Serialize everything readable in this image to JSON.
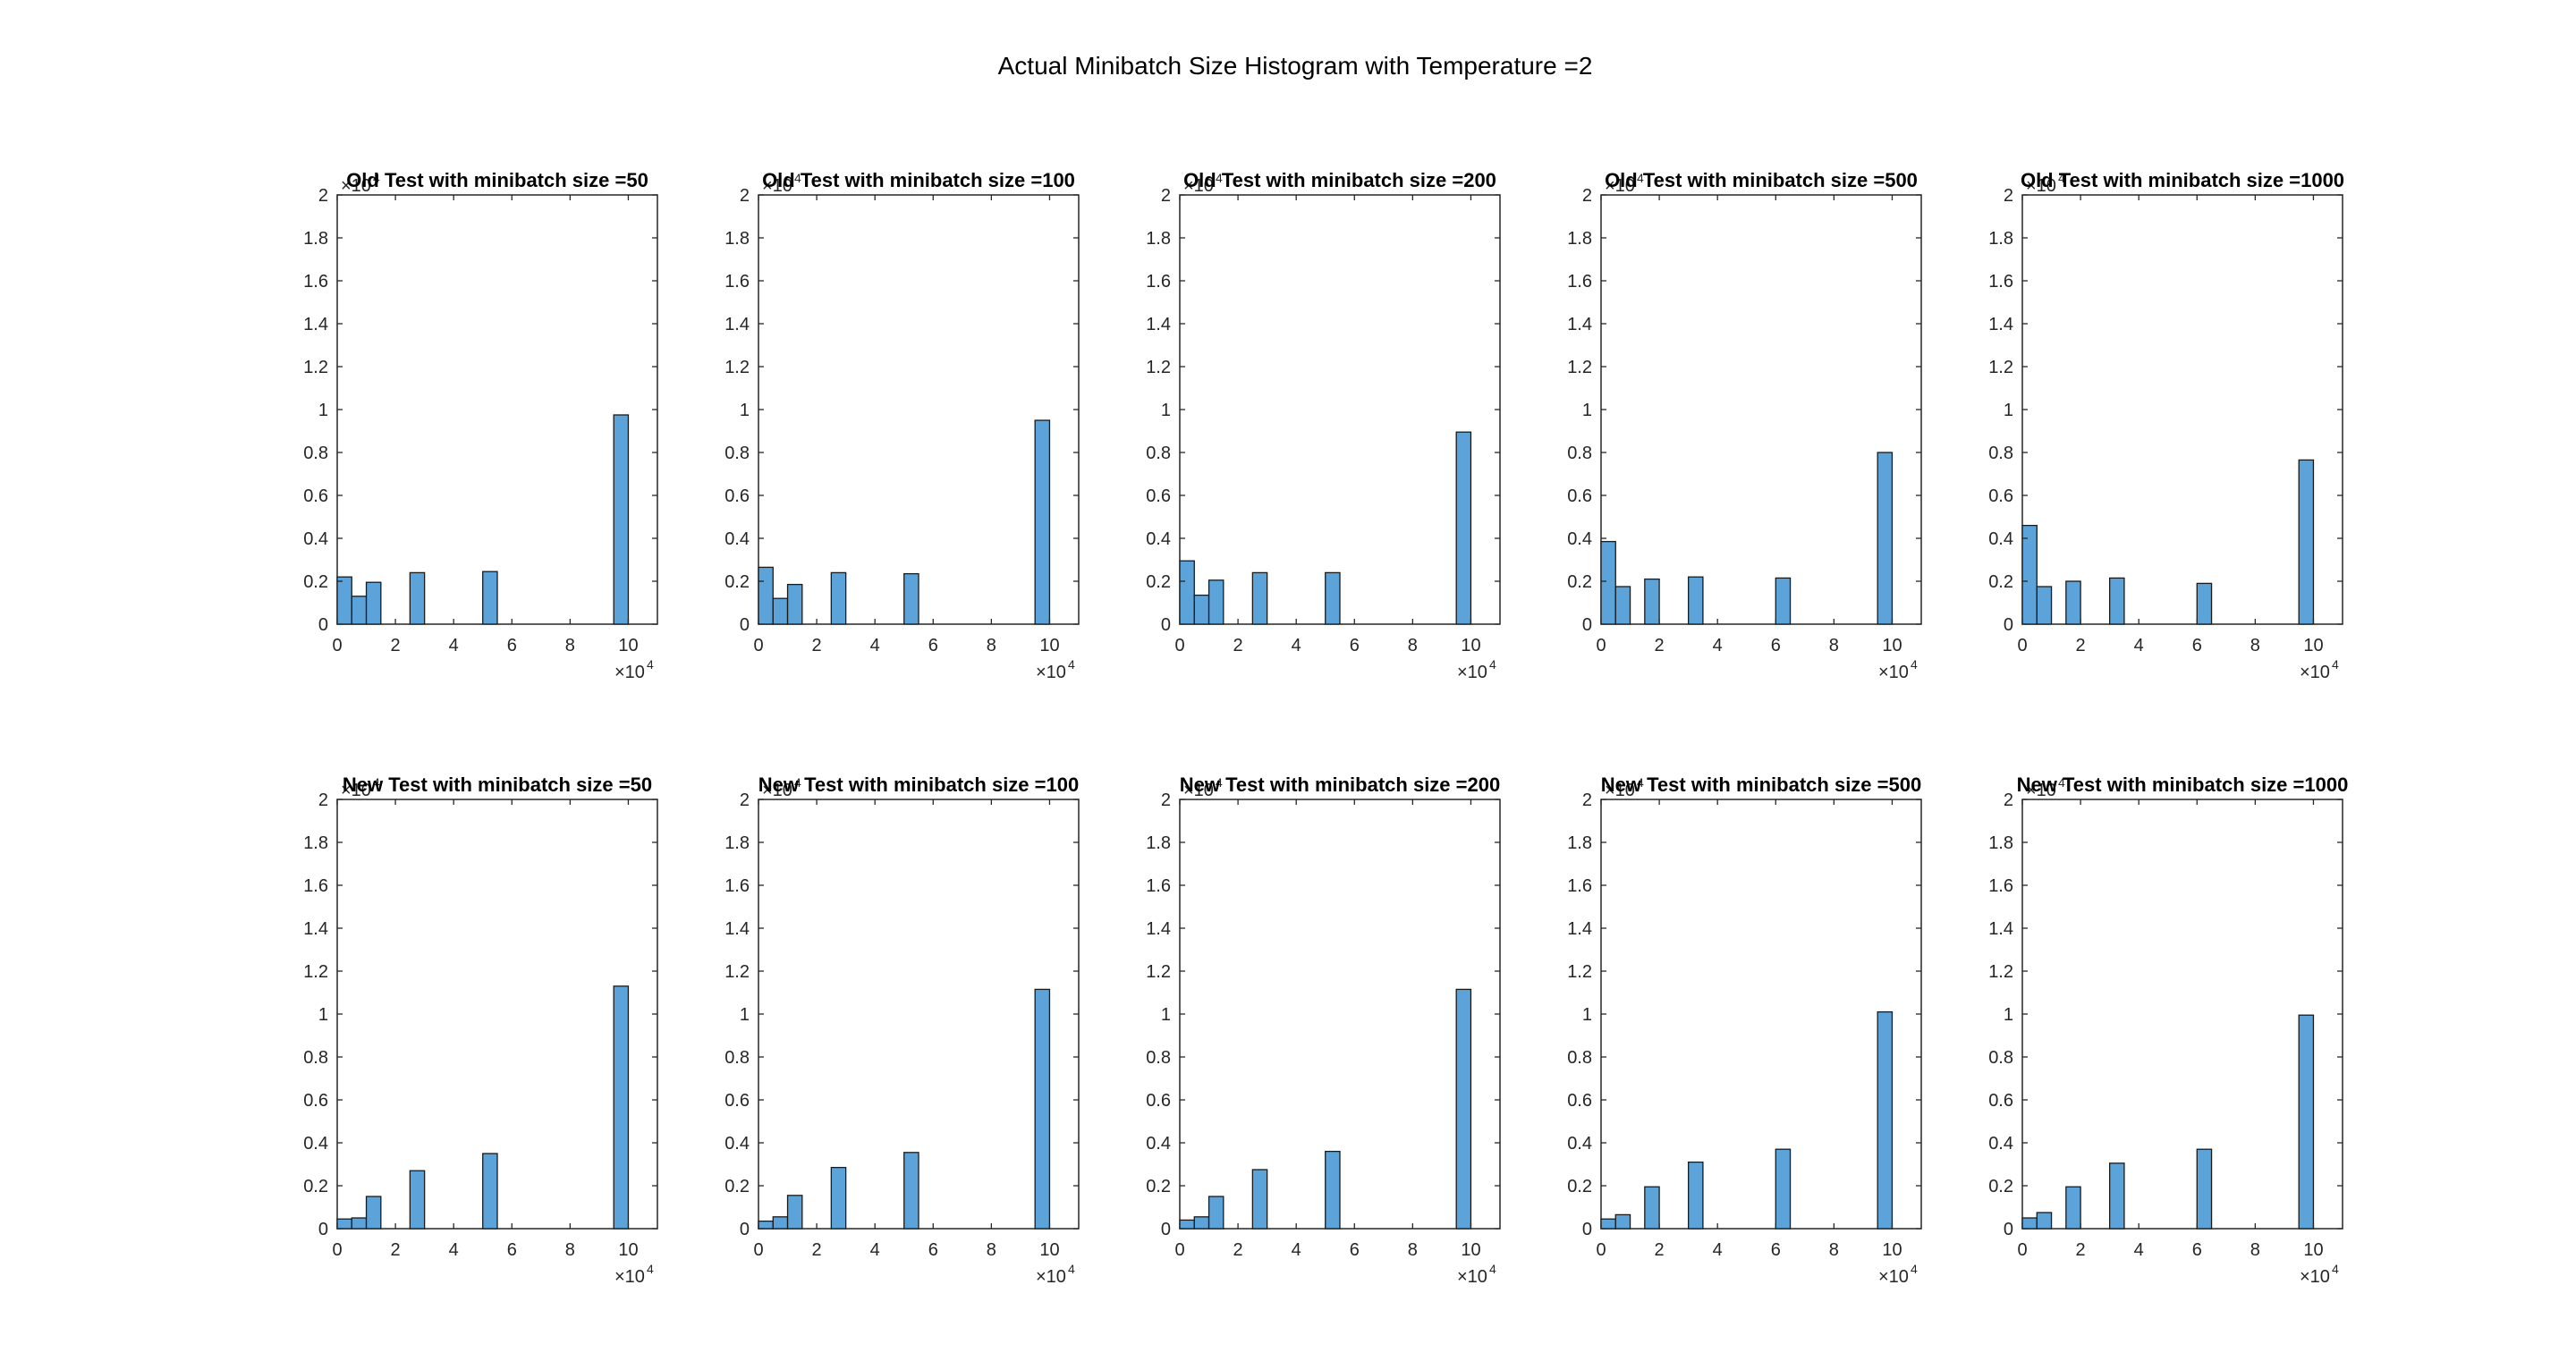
{
  "figure_title": "Actual Minibatch Size Histogram with Temperature =2",
  "colors": {
    "bar_fill": "#5ba3d8",
    "bar_edge": "#1a1a1a",
    "axis": "#262626",
    "background": "#ffffff"
  },
  "chart_data": [
    {
      "type": "bar",
      "title": "Old Test with minibatch size =50",
      "x": [
        5000,
        12000,
        27000,
        51000,
        98000
      ],
      "xlim": [
        0,
        110000
      ],
      "ylim": [
        0,
        20000
      ],
      "y_exponent": 4,
      "x_ticks": [
        "0",
        "2",
        "4",
        "6",
        "8",
        "10"
      ],
      "x_exponent": 4,
      "bin_width": 5000,
      "bins": [
        [
          0,
          5000,
          2200
        ],
        [
          5000,
          10000,
          1300
        ],
        [
          10000,
          15000,
          1950
        ],
        [
          25000,
          30000,
          2400
        ],
        [
          50000,
          55000,
          2450
        ],
        [
          95000,
          100000,
          9750
        ]
      ],
      "yticks": [
        "0",
        "0.2",
        "0.4",
        "0.6",
        "0.8",
        "1",
        "1.2",
        "1.4",
        "1.6",
        "1.8",
        "2"
      ]
    },
    {
      "type": "bar",
      "title": "Old Test with minibatch size =100",
      "xlim": [
        0,
        110000
      ],
      "ylim": [
        0,
        20000
      ],
      "y_exponent": 4,
      "x_ticks": [
        "0",
        "2",
        "4",
        "6",
        "8",
        "10"
      ],
      "x_exponent": 4,
      "bins": [
        [
          0,
          5000,
          2650
        ],
        [
          5000,
          10000,
          1200
        ],
        [
          10000,
          15000,
          1850
        ],
        [
          25000,
          30000,
          2400
        ],
        [
          50000,
          55000,
          2350
        ],
        [
          95000,
          100000,
          9500
        ]
      ],
      "yticks": [
        "0",
        "0.2",
        "0.4",
        "0.6",
        "0.8",
        "1",
        "1.2",
        "1.4",
        "1.6",
        "1.8",
        "2"
      ]
    },
    {
      "type": "bar",
      "title": "Old Test with minibatch size =200",
      "xlim": [
        0,
        110000
      ],
      "ylim": [
        0,
        20000
      ],
      "y_exponent": 4,
      "x_ticks": [
        "0",
        "2",
        "4",
        "6",
        "8",
        "10"
      ],
      "x_exponent": 4,
      "bins": [
        [
          0,
          5000,
          2950
        ],
        [
          5000,
          10000,
          1350
        ],
        [
          10000,
          15000,
          2050
        ],
        [
          25000,
          30000,
          2400
        ],
        [
          50000,
          55000,
          2400
        ],
        [
          95000,
          100000,
          8950
        ]
      ],
      "yticks": [
        "0",
        "0.2",
        "0.4",
        "0.6",
        "0.8",
        "1",
        "1.2",
        "1.4",
        "1.6",
        "1.8",
        "2"
      ]
    },
    {
      "type": "bar",
      "title": "Old Test with minibatch size =500",
      "xlim": [
        0,
        110000
      ],
      "ylim": [
        0,
        20000
      ],
      "y_exponent": 4,
      "x_ticks": [
        "0",
        "2",
        "4",
        "6",
        "8",
        "10"
      ],
      "x_exponent": 4,
      "bins": [
        [
          0,
          5000,
          3850
        ],
        [
          5000,
          10000,
          1750
        ],
        [
          15000,
          20000,
          2100
        ],
        [
          30000,
          35000,
          2200
        ],
        [
          60000,
          65000,
          2150
        ],
        [
          95000,
          100000,
          8000
        ]
      ],
      "yticks": [
        "0",
        "0.2",
        "0.4",
        "0.6",
        "0.8",
        "1",
        "1.2",
        "1.4",
        "1.6",
        "1.8",
        "2"
      ]
    },
    {
      "type": "bar",
      "title": "Old Test with minibatch size =1000",
      "xlim": [
        0,
        110000
      ],
      "ylim": [
        0,
        20000
      ],
      "y_exponent": 4,
      "x_ticks": [
        "0",
        "2",
        "4",
        "6",
        "8",
        "10"
      ],
      "x_exponent": 4,
      "bins": [
        [
          0,
          5000,
          4600
        ],
        [
          5000,
          10000,
          1750
        ],
        [
          15000,
          20000,
          2000
        ],
        [
          30000,
          35000,
          2150
        ],
        [
          60000,
          65000,
          1900
        ],
        [
          95000,
          100000,
          7650
        ]
      ],
      "yticks": [
        "0",
        "0.2",
        "0.4",
        "0.6",
        "0.8",
        "1",
        "1.2",
        "1.4",
        "1.6",
        "1.8",
        "2"
      ]
    },
    {
      "type": "bar",
      "title": "New Test with minibatch size =50",
      "xlim": [
        0,
        110000
      ],
      "ylim": [
        0,
        20000
      ],
      "y_exponent": 4,
      "x_ticks": [
        "0",
        "2",
        "4",
        "6",
        "8",
        "10"
      ],
      "x_exponent": 4,
      "bins": [
        [
          0,
          5000,
          450
        ],
        [
          5000,
          10000,
          500
        ],
        [
          10000,
          15000,
          1500
        ],
        [
          25000,
          30000,
          2700
        ],
        [
          50000,
          55000,
          3500
        ],
        [
          95000,
          100000,
          11300
        ]
      ],
      "yticks": [
        "0",
        "0.2",
        "0.4",
        "0.6",
        "0.8",
        "1",
        "1.2",
        "1.4",
        "1.6",
        "1.8",
        "2"
      ]
    },
    {
      "type": "bar",
      "title": "New Test with minibatch size =100",
      "xlim": [
        0,
        110000
      ],
      "ylim": [
        0,
        20000
      ],
      "y_exponent": 4,
      "x_ticks": [
        "0",
        "2",
        "4",
        "6",
        "8",
        "10"
      ],
      "x_exponent": 4,
      "bins": [
        [
          0,
          5000,
          350
        ],
        [
          5000,
          10000,
          550
        ],
        [
          10000,
          15000,
          1550
        ],
        [
          25000,
          30000,
          2850
        ],
        [
          50000,
          55000,
          3550
        ],
        [
          95000,
          100000,
          11150
        ]
      ],
      "yticks": [
        "0",
        "0.2",
        "0.4",
        "0.6",
        "0.8",
        "1",
        "1.2",
        "1.4",
        "1.6",
        "1.8",
        "2"
      ]
    },
    {
      "type": "bar",
      "title": "New Test with minibatch size =200",
      "xlim": [
        0,
        110000
      ],
      "ylim": [
        0,
        20000
      ],
      "y_exponent": 4,
      "x_ticks": [
        "0",
        "2",
        "4",
        "6",
        "8",
        "10"
      ],
      "x_exponent": 4,
      "bins": [
        [
          0,
          5000,
          400
        ],
        [
          5000,
          10000,
          550
        ],
        [
          10000,
          15000,
          1500
        ],
        [
          25000,
          30000,
          2750
        ],
        [
          50000,
          55000,
          3600
        ],
        [
          95000,
          100000,
          11150
        ]
      ],
      "yticks": [
        "0",
        "0.2",
        "0.4",
        "0.6",
        "0.8",
        "1",
        "1.2",
        "1.4",
        "1.6",
        "1.8",
        "2"
      ]
    },
    {
      "type": "bar",
      "title": "New Test with minibatch size =500",
      "xlim": [
        0,
        110000
      ],
      "ylim": [
        0,
        20000
      ],
      "y_exponent": 4,
      "x_ticks": [
        "0",
        "2",
        "4",
        "6",
        "8",
        "10"
      ],
      "x_exponent": 4,
      "bins": [
        [
          0,
          5000,
          450
        ],
        [
          5000,
          10000,
          650
        ],
        [
          15000,
          20000,
          1950
        ],
        [
          30000,
          35000,
          3100
        ],
        [
          60000,
          65000,
          3700
        ],
        [
          95000,
          100000,
          10100
        ]
      ],
      "yticks": [
        "0",
        "0.2",
        "0.4",
        "0.6",
        "0.8",
        "1",
        "1.2",
        "1.4",
        "1.6",
        "1.8",
        "2"
      ]
    },
    {
      "type": "bar",
      "title": "New Test with minibatch size =1000",
      "xlim": [
        0,
        110000
      ],
      "ylim": [
        0,
        20000
      ],
      "y_exponent": 4,
      "x_ticks": [
        "0",
        "2",
        "4",
        "6",
        "8",
        "10"
      ],
      "x_exponent": 4,
      "bins": [
        [
          0,
          5000,
          500
        ],
        [
          5000,
          10000,
          750
        ],
        [
          15000,
          20000,
          1950
        ],
        [
          30000,
          35000,
          3050
        ],
        [
          60000,
          65000,
          3700
        ],
        [
          95000,
          100000,
          9950
        ]
      ],
      "yticks": [
        "0",
        "0.2",
        "0.4",
        "0.6",
        "0.8",
        "1",
        "1.2",
        "1.4",
        "1.6",
        "1.8",
        "2"
      ]
    }
  ]
}
